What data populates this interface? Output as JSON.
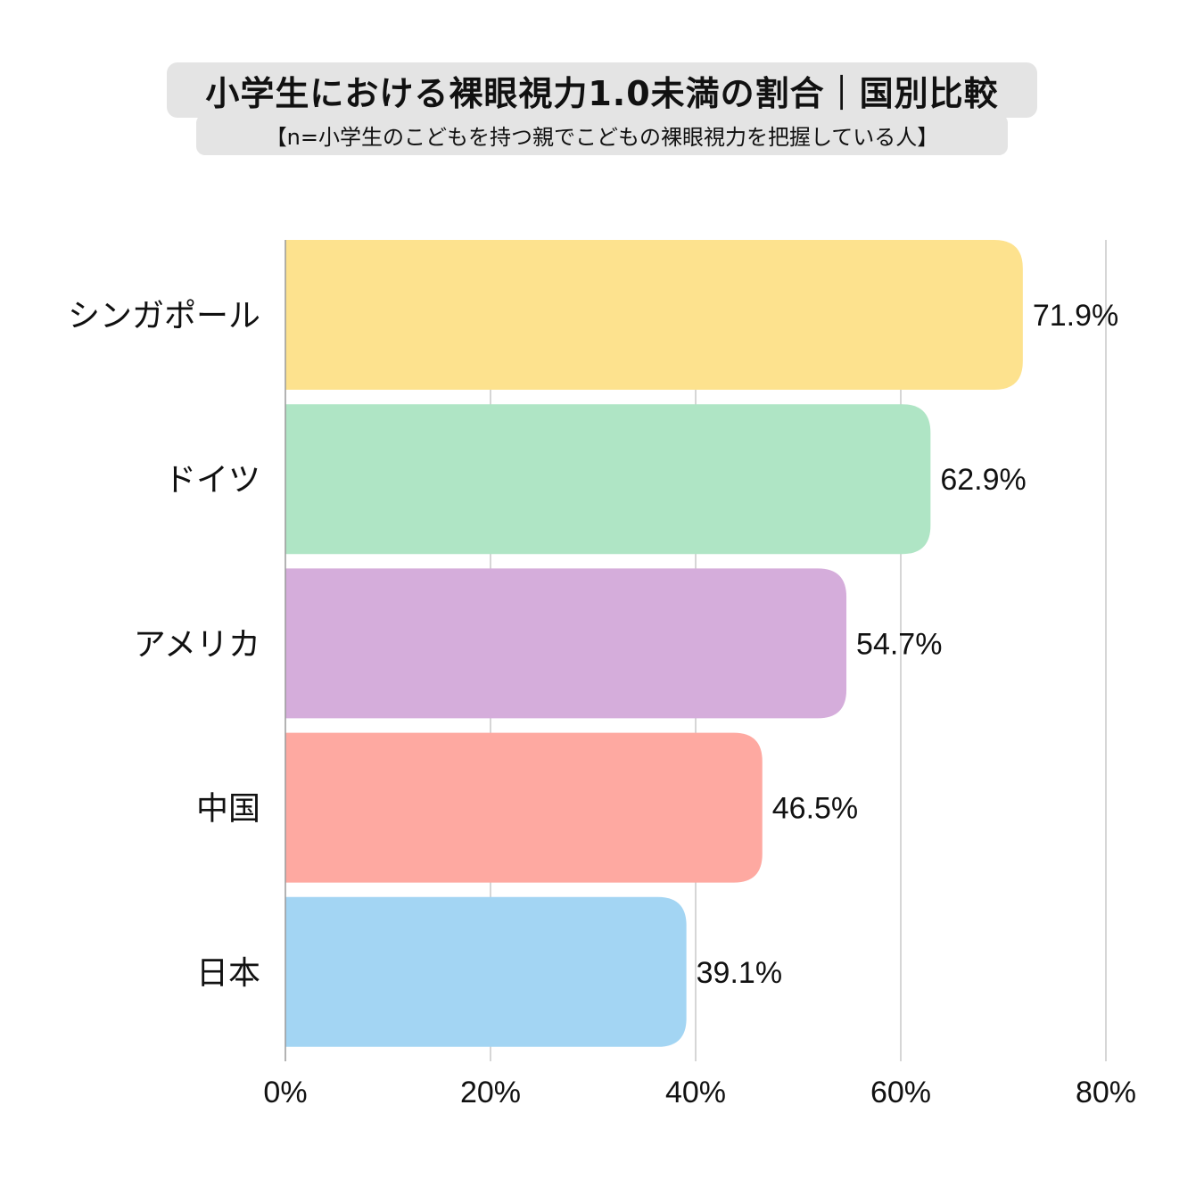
{
  "header": {
    "title": "小学生における裸眼視力1.0未満の割合｜国別比較",
    "subtitle": "【n=小学生のこどもを持つ親でこどもの裸眼視力を把握している人】"
  },
  "chart_data": {
    "type": "bar",
    "orientation": "horizontal",
    "categories": [
      "シンガポール",
      "ドイツ",
      "アメリカ",
      "中国",
      "日本"
    ],
    "values": [
      71.9,
      62.9,
      54.7,
      46.5,
      39.1
    ],
    "value_labels": [
      "71.9%",
      "62.9%",
      "54.7%",
      "46.5%",
      "39.1%"
    ],
    "colors": [
      "#fde28e",
      "#afe5c5",
      "#d5addb",
      "#fea9a1",
      "#a3d5f3"
    ],
    "xlim": [
      0,
      80
    ],
    "xticks": [
      0,
      20,
      40,
      60,
      80
    ],
    "xtick_labels": [
      "0%",
      "20%",
      "40%",
      "60%",
      "80%"
    ],
    "grid": true,
    "title": "小学生における裸眼視力1.0未満の割合｜国別比較",
    "xlabel": "",
    "ylabel": ""
  }
}
